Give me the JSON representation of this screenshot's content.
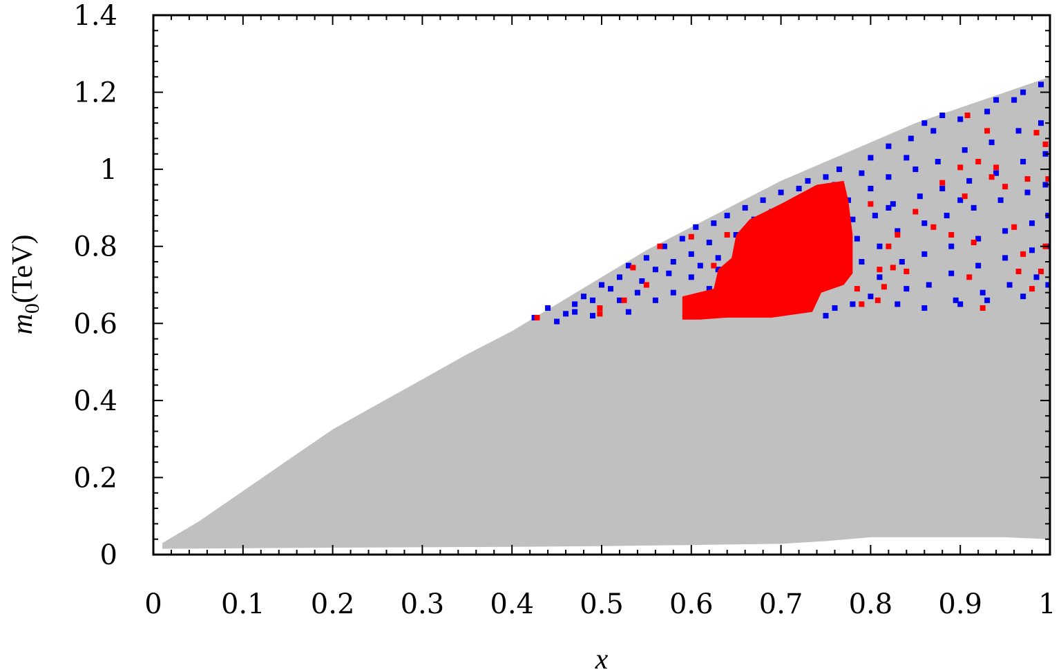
{
  "chart_data": {
    "type": "scatter",
    "title": "",
    "xlabel": "x",
    "ylabel": {
      "symbol": "m",
      "subscript": "0",
      "unit": "(TeV)"
    },
    "xlim": [
      0,
      1
    ],
    "ylim": [
      0,
      1.4
    ],
    "x_ticks": [
      {
        "value": 0,
        "label": "0"
      },
      {
        "value": 0.1,
        "label": "0.1"
      },
      {
        "value": 0.2,
        "label": "0.2"
      },
      {
        "value": 0.3,
        "label": "0.3"
      },
      {
        "value": 0.4,
        "label": "0.4"
      },
      {
        "value": 0.5,
        "label": "0.5"
      },
      {
        "value": 0.6,
        "label": "0.6"
      },
      {
        "value": 0.7,
        "label": "0.7"
      },
      {
        "value": 0.8,
        "label": "0.8"
      },
      {
        "value": 0.9,
        "label": "0.9"
      },
      {
        "value": 1,
        "label": "1"
      }
    ],
    "y_ticks": [
      {
        "value": 0,
        "label": "0"
      },
      {
        "value": 0.2,
        "label": "0.2"
      },
      {
        "value": 0.4,
        "label": "0.4"
      },
      {
        "value": 0.6,
        "label": "0.6"
      },
      {
        "value": 0.8,
        "label": "0.8"
      },
      {
        "value": 1,
        "label": "1"
      },
      {
        "value": 1.2,
        "label": "1.2"
      },
      {
        "value": 1.4,
        "label": "1.4"
      }
    ],
    "minor_ticks_per_major": 5,
    "grid": false,
    "legend": "none",
    "series": [
      {
        "color": "#c0c0c0",
        "kind": "filled-region",
        "upper_boundary": [
          [
            0.01,
            0.03
          ],
          [
            0.05,
            0.085
          ],
          [
            0.1,
            0.165
          ],
          [
            0.15,
            0.245
          ],
          [
            0.2,
            0.325
          ],
          [
            0.25,
            0.39
          ],
          [
            0.3,
            0.455
          ],
          [
            0.35,
            0.52
          ],
          [
            0.4,
            0.58
          ],
          [
            0.45,
            0.65
          ],
          [
            0.5,
            0.72
          ],
          [
            0.55,
            0.79
          ],
          [
            0.6,
            0.85
          ],
          [
            0.65,
            0.91
          ],
          [
            0.7,
            0.97
          ],
          [
            0.75,
            1.02
          ],
          [
            0.8,
            1.07
          ],
          [
            0.85,
            1.12
          ],
          [
            0.9,
            1.16
          ],
          [
            0.95,
            1.2
          ],
          [
            1.0,
            1.24
          ]
        ],
        "lower_boundary": [
          [
            0.01,
            0.015
          ],
          [
            0.2,
            0.018
          ],
          [
            0.4,
            0.02
          ],
          [
            0.5,
            0.022
          ],
          [
            0.6,
            0.025
          ],
          [
            0.7,
            0.028
          ],
          [
            0.75,
            0.035
          ],
          [
            0.8,
            0.045
          ],
          [
            0.85,
            0.045
          ],
          [
            0.9,
            0.045
          ],
          [
            0.95,
            0.045
          ],
          [
            1.0,
            0.04
          ]
        ]
      },
      {
        "color": "#0000ee",
        "kind": "points",
        "points": [
          [
            0.425,
            0.615
          ],
          [
            0.44,
            0.64
          ],
          [
            0.45,
            0.605
          ],
          [
            0.46,
            0.625
          ],
          [
            0.47,
            0.65
          ],
          [
            0.48,
            0.67
          ],
          [
            0.49,
            0.66
          ],
          [
            0.5,
            0.7
          ],
          [
            0.51,
            0.69
          ],
          [
            0.52,
            0.72
          ],
          [
            0.53,
            0.75
          ],
          [
            0.54,
            0.68
          ],
          [
            0.545,
            0.71
          ],
          [
            0.55,
            0.77
          ],
          [
            0.56,
            0.74
          ],
          [
            0.57,
            0.8
          ],
          [
            0.575,
            0.73
          ],
          [
            0.58,
            0.76
          ],
          [
            0.59,
            0.82
          ],
          [
            0.6,
            0.78
          ],
          [
            0.605,
            0.85
          ],
          [
            0.61,
            0.75
          ],
          [
            0.62,
            0.81
          ],
          [
            0.625,
            0.86
          ],
          [
            0.63,
            0.77
          ],
          [
            0.64,
            0.88
          ],
          [
            0.645,
            0.72
          ],
          [
            0.65,
            0.83
          ],
          [
            0.66,
            0.9
          ],
          [
            0.67,
            0.87
          ],
          [
            0.68,
            0.92
          ],
          [
            0.69,
            0.89
          ],
          [
            0.7,
            0.94
          ],
          [
            0.71,
            0.91
          ],
          [
            0.72,
            0.95
          ],
          [
            0.73,
            0.97
          ],
          [
            0.74,
            0.93
          ],
          [
            0.75,
            0.98
          ],
          [
            0.76,
            0.96
          ],
          [
            0.765,
            1.0
          ],
          [
            0.775,
            0.92
          ],
          [
            0.78,
            0.87
          ],
          [
            0.785,
            0.82
          ],
          [
            0.79,
            0.76
          ],
          [
            0.79,
            0.99
          ],
          [
            0.8,
            1.03
          ],
          [
            0.8,
            0.95
          ],
          [
            0.805,
            0.88
          ],
          [
            0.81,
            0.8
          ],
          [
            0.81,
            0.72
          ],
          [
            0.82,
            1.06
          ],
          [
            0.82,
            0.98
          ],
          [
            0.825,
            0.91
          ],
          [
            0.83,
            0.84
          ],
          [
            0.835,
            0.76
          ],
          [
            0.84,
            0.69
          ],
          [
            0.845,
            1.08
          ],
          [
            0.85,
            1.0
          ],
          [
            0.855,
            0.93
          ],
          [
            0.86,
            0.86
          ],
          [
            0.86,
            0.78
          ],
          [
            0.865,
            0.7
          ],
          [
            0.87,
            1.1
          ],
          [
            0.875,
            1.02
          ],
          [
            0.88,
            0.95
          ],
          [
            0.885,
            0.88
          ],
          [
            0.89,
            0.8
          ],
          [
            0.89,
            0.73
          ],
          [
            0.895,
            0.66
          ],
          [
            0.9,
            1.13
          ],
          [
            0.905,
            1.05
          ],
          [
            0.91,
            0.97
          ],
          [
            0.915,
            0.9
          ],
          [
            0.92,
            0.82
          ],
          [
            0.92,
            0.75
          ],
          [
            0.925,
            0.68
          ],
          [
            0.93,
            1.15
          ],
          [
            0.935,
            1.07
          ],
          [
            0.94,
            0.99
          ],
          [
            0.945,
            0.92
          ],
          [
            0.95,
            0.84
          ],
          [
            0.95,
            0.77
          ],
          [
            0.955,
            0.7
          ],
          [
            0.96,
            1.18
          ],
          [
            0.965,
            1.1
          ],
          [
            0.97,
            1.02
          ],
          [
            0.975,
            0.94
          ],
          [
            0.98,
            0.86
          ],
          [
            0.98,
            0.79
          ],
          [
            0.985,
            0.72
          ],
          [
            0.99,
            1.22
          ],
          [
            0.99,
            1.12
          ],
          [
            0.995,
            1.04
          ],
          [
            0.995,
            0.96
          ],
          [
            0.998,
            0.88
          ],
          [
            0.998,
            0.8
          ],
          [
            0.998,
            0.7
          ],
          [
            0.62,
            0.69
          ],
          [
            0.6,
            0.72
          ],
          [
            0.58,
            0.68
          ],
          [
            0.56,
            0.66
          ],
          [
            0.53,
            0.63
          ],
          [
            0.52,
            0.66
          ],
          [
            0.49,
            0.62
          ],
          [
            0.47,
            0.63
          ],
          [
            0.66,
            0.8
          ],
          [
            0.63,
            0.74
          ],
          [
            0.68,
            0.84
          ],
          [
            0.86,
            1.12
          ],
          [
            0.88,
            1.14
          ],
          [
            0.84,
            1.03
          ],
          [
            0.82,
            0.9
          ],
          [
            0.9,
            0.92
          ],
          [
            0.94,
            1.18
          ],
          [
            0.97,
            1.2
          ],
          [
            0.78,
            0.65
          ],
          [
            0.8,
            0.67
          ],
          [
            0.83,
            0.65
          ],
          [
            0.86,
            0.64
          ],
          [
            0.9,
            0.65
          ],
          [
            0.93,
            0.66
          ],
          [
            0.97,
            0.67
          ],
          [
            0.76,
            0.64
          ],
          [
            0.75,
            0.62
          ]
        ]
      },
      {
        "color": "#ff0000",
        "kind": "filled-region",
        "polygon": [
          [
            0.59,
            0.61
          ],
          [
            0.59,
            0.67
          ],
          [
            0.625,
            0.69
          ],
          [
            0.63,
            0.74
          ],
          [
            0.645,
            0.77
          ],
          [
            0.65,
            0.83
          ],
          [
            0.665,
            0.87
          ],
          [
            0.7,
            0.91
          ],
          [
            0.74,
            0.96
          ],
          [
            0.77,
            0.97
          ],
          [
            0.775,
            0.92
          ],
          [
            0.78,
            0.83
          ],
          [
            0.78,
            0.73
          ],
          [
            0.77,
            0.7
          ],
          [
            0.745,
            0.68
          ],
          [
            0.735,
            0.63
          ],
          [
            0.705,
            0.62
          ],
          [
            0.69,
            0.615
          ],
          [
            0.64,
            0.615
          ],
          [
            0.61,
            0.61
          ]
        ]
      },
      {
        "color": "#ff0000",
        "kind": "points",
        "points": [
          [
            0.428,
            0.615
          ],
          [
            0.498,
            0.64
          ],
          [
            0.498,
            0.625
          ],
          [
            0.525,
            0.66
          ],
          [
            0.535,
            0.745
          ],
          [
            0.55,
            0.7
          ],
          [
            0.565,
            0.8
          ],
          [
            0.6,
            0.825
          ],
          [
            0.64,
            0.83
          ],
          [
            0.625,
            0.75
          ],
          [
            0.785,
            0.69
          ],
          [
            0.79,
            0.65
          ],
          [
            0.8,
            0.91
          ],
          [
            0.81,
            0.74
          ],
          [
            0.815,
            0.695
          ],
          [
            0.82,
            0.8
          ],
          [
            0.825,
            0.745
          ],
          [
            0.83,
            0.83
          ],
          [
            0.84,
            0.735
          ],
          [
            0.85,
            0.89
          ],
          [
            0.87,
            0.85
          ],
          [
            0.88,
            0.965
          ],
          [
            0.89,
            0.83
          ],
          [
            0.9,
            1.005
          ],
          [
            0.905,
            0.93
          ],
          [
            0.91,
            0.72
          ],
          [
            0.915,
            0.81
          ],
          [
            0.92,
            1.02
          ],
          [
            0.925,
            0.64
          ],
          [
            0.93,
            1.1
          ],
          [
            0.935,
            0.98
          ],
          [
            0.94,
            1.005
          ],
          [
            0.95,
            0.955
          ],
          [
            0.96,
            0.85
          ],
          [
            0.965,
            0.735
          ],
          [
            0.97,
            0.78
          ],
          [
            0.975,
            0.975
          ],
          [
            0.98,
            0.69
          ],
          [
            0.985,
            1.095
          ],
          [
            0.99,
            0.735
          ],
          [
            0.995,
            0.8
          ],
          [
            0.995,
            1.065
          ],
          [
            0.998,
            0.975
          ],
          [
            0.908,
            1.14
          ],
          [
            0.808,
            0.66
          ]
        ]
      }
    ]
  }
}
